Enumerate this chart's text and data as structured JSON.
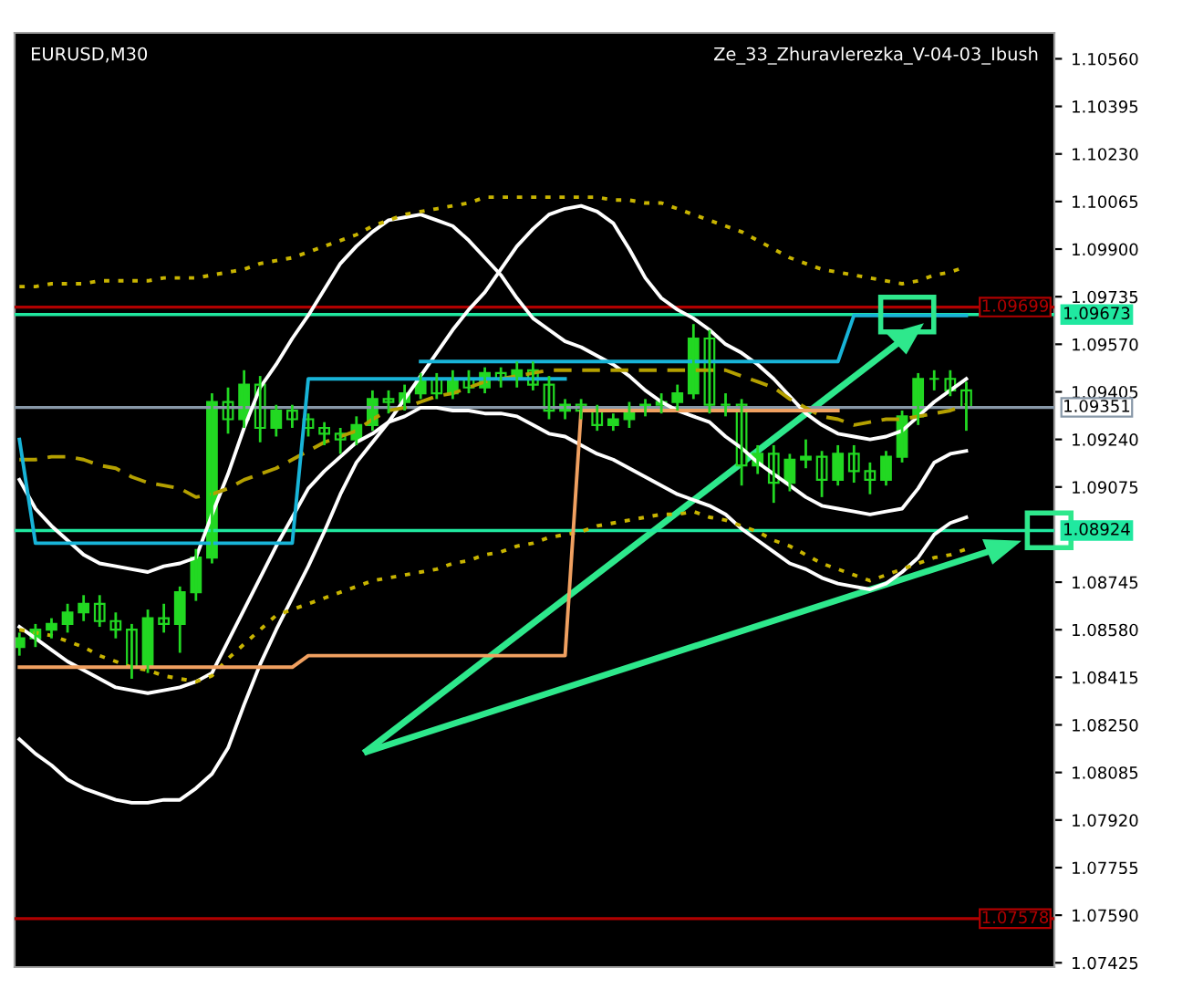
{
  "chart_data": {
    "type": "candlestick",
    "title": "EURUSD,M30",
    "subtitle": "Ze_33_Zhuravlerezka_V-04-03_Ibush",
    "categories": [
      null,
      null,
      null,
      null,
      null,
      null,
      null,
      null,
      null,
      null,
      null,
      null,
      null,
      null,
      null,
      null,
      null,
      null,
      null,
      null,
      null,
      null,
      null,
      null,
      null,
      null,
      null,
      null,
      null,
      null,
      null,
      null,
      null,
      null,
      null,
      null,
      null,
      null,
      null,
      null,
      null,
      null,
      null,
      null,
      null,
      null,
      null,
      null,
      null,
      null,
      null,
      null,
      null,
      null,
      null,
      null,
      null,
      null,
      null,
      null
    ],
    "color": "#22d822",
    "ohlc": [
      [
        1.0852,
        1.0857,
        1.0849,
        1.0855
      ],
      [
        1.0855,
        1.086,
        1.0852,
        1.0858
      ],
      [
        1.0858,
        1.0862,
        1.0855,
        1.086
      ],
      [
        1.086,
        1.0867,
        1.0857,
        1.0864
      ],
      [
        1.0864,
        1.087,
        1.0861,
        1.0867
      ],
      [
        1.0867,
        1.087,
        1.0859,
        1.0861
      ],
      [
        1.0861,
        1.0864,
        1.0855,
        1.0858
      ],
      [
        1.0858,
        1.086,
        1.0841,
        1.0845
      ],
      [
        1.0845,
        1.0865,
        1.0843,
        1.0862
      ],
      [
        1.0862,
        1.0867,
        1.0857,
        1.086
      ],
      [
        1.086,
        1.0873,
        1.085,
        1.0871
      ],
      [
        1.0871,
        1.0886,
        1.0868,
        1.0883
      ],
      [
        1.0883,
        1.094,
        1.0881,
        1.0937
      ],
      [
        1.0937,
        1.0942,
        1.0926,
        1.0931
      ],
      [
        1.0931,
        1.0948,
        1.0928,
        1.0943
      ],
      [
        1.0943,
        1.0946,
        1.0923,
        1.0928
      ],
      [
        1.0928,
        1.0936,
        1.0925,
        1.0934
      ],
      [
        1.0934,
        1.0936,
        1.0928,
        1.0931
      ],
      [
        1.0931,
        1.0933,
        1.0925,
        1.0928
      ],
      [
        1.0928,
        1.093,
        1.0922,
        1.0926
      ],
      [
        1.0926,
        1.0928,
        1.0919,
        1.0924
      ],
      [
        1.0924,
        1.0932,
        1.0922,
        1.0929
      ],
      [
        1.0929,
        1.0941,
        1.0927,
        1.0938
      ],
      [
        1.0938,
        1.0941,
        1.0933,
        1.0937
      ],
      [
        1.0937,
        1.0943,
        1.0934,
        1.094
      ],
      [
        1.094,
        1.0947,
        1.0938,
        1.0945
      ],
      [
        1.0945,
        1.0947,
        1.0938,
        1.094
      ],
      [
        1.094,
        1.0948,
        1.0938,
        1.0945
      ],
      [
        1.0945,
        1.0948,
        1.094,
        1.0942
      ],
      [
        1.0942,
        1.0949,
        1.094,
        1.0947
      ],
      [
        1.0947,
        1.0949,
        1.0942,
        1.0945
      ],
      [
        1.0945,
        1.0951,
        1.0942,
        1.0948
      ],
      [
        1.0948,
        1.0951,
        1.0941,
        1.0943
      ],
      [
        1.0943,
        1.0946,
        1.0931,
        1.0934
      ],
      [
        1.0934,
        1.0938,
        1.0931,
        1.0936
      ],
      [
        1.0936,
        1.0938,
        1.0931,
        1.0934
      ],
      [
        1.0934,
        1.0936,
        1.0927,
        1.0929
      ],
      [
        1.0929,
        1.0933,
        1.0927,
        1.0931
      ],
      [
        1.0931,
        1.0937,
        1.0928,
        1.0934
      ],
      [
        1.0934,
        1.0938,
        1.0932,
        1.0936
      ],
      [
        1.0936,
        1.094,
        1.0933,
        1.0937
      ],
      [
        1.0937,
        1.0943,
        1.0934,
        1.094
      ],
      [
        1.094,
        1.0964,
        1.0938,
        1.0959
      ],
      [
        1.0959,
        1.0962,
        1.0933,
        1.0936
      ],
      [
        1.0936,
        1.094,
        1.0932,
        1.0936
      ],
      [
        1.0936,
        1.0938,
        1.0908,
        1.0915
      ],
      [
        1.0915,
        1.0922,
        1.0912,
        1.0919
      ],
      [
        1.0919,
        1.0922,
        1.0902,
        1.0909
      ],
      [
        1.0909,
        1.0919,
        1.0906,
        1.0917
      ],
      [
        1.0917,
        1.0924,
        1.0914,
        1.0918
      ],
      [
        1.0918,
        1.092,
        1.0904,
        1.091
      ],
      [
        1.091,
        1.0922,
        1.0908,
        1.0919
      ],
      [
        1.0919,
        1.0922,
        1.0909,
        1.0913
      ],
      [
        1.0913,
        1.0916,
        1.0905,
        1.091
      ],
      [
        1.091,
        1.092,
        1.0908,
        1.0918
      ],
      [
        1.0918,
        1.0934,
        1.0916,
        1.0932
      ],
      [
        1.0932,
        1.0947,
        1.0929,
        1.0945
      ],
      [
        1.0945,
        1.0948,
        1.0941,
        1.0945
      ],
      [
        1.0945,
        1.0948,
        1.0939,
        1.0941
      ],
      [
        1.0941,
        1.0944,
        1.0927,
        1.0935
      ]
    ],
    "series": [
      {
        "type": "line",
        "color": "#ffffff",
        "line_style": "solid",
        "values": [
          1.082,
          1.0815,
          1.0811,
          1.0806,
          1.0803,
          1.0801,
          1.0799,
          1.0798,
          1.0798,
          1.0799,
          1.0799,
          1.0803,
          1.0808,
          1.0817,
          1.0832,
          1.0846,
          1.0858,
          1.0869,
          1.088,
          1.0892,
          1.0905,
          1.0916,
          1.0923,
          1.093,
          1.0938,
          1.0946,
          1.0954,
          1.0962,
          1.0969,
          1.0975,
          1.0983,
          1.0991,
          1.0997,
          1.1002,
          1.1004,
          1.1005,
          1.1003,
          1.0999,
          1.099,
          1.098,
          1.0973,
          1.0969,
          1.0966,
          1.0962,
          1.0957,
          1.0954,
          1.095,
          1.0945,
          1.0939,
          1.0933,
          1.0929,
          1.0926,
          1.0925,
          1.0924,
          1.0925,
          1.0927,
          1.0932,
          1.0937,
          1.0941,
          1.0945
        ]
      },
      {
        "type": "line",
        "color": "#ffffff",
        "line_style": "solid",
        "values": [
          1.091,
          1.09,
          1.0894,
          1.0889,
          1.0884,
          1.0881,
          1.088,
          1.0879,
          1.0878,
          1.088,
          1.0881,
          1.0883,
          1.0898,
          1.0912,
          1.0928,
          1.0942,
          1.095,
          1.0959,
          1.0967,
          1.0976,
          1.0985,
          1.0991,
          1.0996,
          1.1,
          1.1001,
          1.1002,
          1.1,
          1.0998,
          1.0993,
          1.0987,
          1.0981,
          1.0973,
          1.0966,
          1.0962,
          1.0958,
          1.0956,
          1.0953,
          1.095,
          1.0946,
          1.0941,
          1.0937,
          1.0934,
          1.0932,
          1.093,
          1.0925,
          1.0921,
          1.0916,
          1.0912,
          1.0908,
          1.0904,
          1.0901,
          1.09,
          1.0899,
          1.0898,
          1.0899,
          1.09,
          1.0907,
          1.0916,
          1.0919,
          1.092
        ]
      },
      {
        "type": "line",
        "color": "#ffffff",
        "line_style": "solid",
        "values": [
          1.0859,
          1.0855,
          1.0851,
          1.0847,
          1.0844,
          1.0841,
          1.0838,
          1.0837,
          1.0836,
          1.0837,
          1.0838,
          1.084,
          1.0843,
          1.0854,
          1.0865,
          1.0876,
          1.0887,
          1.0897,
          1.0907,
          1.0913,
          1.0918,
          1.0923,
          1.0926,
          1.093,
          1.0932,
          1.0935,
          1.0935,
          1.0934,
          1.0934,
          1.0933,
          1.0933,
          1.0932,
          1.0929,
          1.0926,
          1.0925,
          1.0922,
          1.0919,
          1.0917,
          1.0914,
          1.0911,
          1.0908,
          1.0905,
          1.0903,
          1.0901,
          1.0898,
          1.0893,
          1.0889,
          1.0885,
          1.0881,
          1.0879,
          1.0876,
          1.0874,
          1.0873,
          1.0872,
          1.0874,
          1.0878,
          1.0883,
          1.0891,
          1.0895,
          1.0897
        ]
      },
      {
        "type": "line",
        "color": "#c8b400",
        "line_style": "dotted",
        "values": [
          1.0977,
          1.0977,
          1.0978,
          1.0978,
          1.0978,
          1.0979,
          1.0979,
          1.0979,
          1.0979,
          1.098,
          1.098,
          1.098,
          1.0981,
          1.0982,
          1.0983,
          1.0985,
          1.0986,
          1.0987,
          1.0989,
          1.0991,
          1.0993,
          1.0995,
          1.0998,
          1.1,
          1.1002,
          1.1003,
          1.1004,
          1.1005,
          1.1006,
          1.1008,
          1.1008,
          1.1008,
          1.1008,
          1.1008,
          1.1008,
          1.1008,
          1.1008,
          1.1007,
          1.1007,
          1.1006,
          1.1006,
          1.1004,
          1.1002,
          1.1,
          1.0998,
          1.0996,
          1.0993,
          1.099,
          1.0987,
          1.0985,
          1.0983,
          1.0982,
          1.0981,
          1.098,
          1.0979,
          1.0978,
          1.0979,
          1.0981,
          1.0982,
          1.0984
        ]
      },
      {
        "type": "line",
        "color": "#b4a000",
        "line_style": "dashed",
        "values": [
          1.0917,
          1.0917,
          1.0918,
          1.0918,
          1.0917,
          1.0915,
          1.0914,
          1.0911,
          1.0909,
          1.0908,
          1.0907,
          1.0904,
          1.0905,
          1.0907,
          1.091,
          1.0912,
          1.0914,
          1.0917,
          1.092,
          1.0923,
          1.0925,
          1.0927,
          1.0931,
          1.0934,
          1.0935,
          1.0937,
          1.0939,
          1.094,
          1.0942,
          1.0944,
          1.0945,
          1.0946,
          1.0947,
          1.0948,
          1.0948,
          1.0948,
          1.0948,
          1.0948,
          1.0948,
          1.0948,
          1.0948,
          1.0948,
          1.0948,
          1.0948,
          1.0948,
          1.0946,
          1.0944,
          1.0942,
          1.0938,
          1.0935,
          1.0932,
          1.0931,
          1.0929,
          1.093,
          1.0931,
          1.0931,
          1.0932,
          1.0933,
          1.0934,
          1.0936
        ]
      },
      {
        "type": "line",
        "color": "#c8b400",
        "line_style": "dotted",
        "values": [
          1.0858,
          1.0857,
          1.0856,
          1.0854,
          1.0852,
          1.0849,
          1.0847,
          1.0845,
          1.0844,
          1.0842,
          1.0841,
          1.084,
          1.0842,
          1.0848,
          1.0853,
          1.0858,
          1.0863,
          1.0865,
          1.0867,
          1.0869,
          1.0871,
          1.0873,
          1.0875,
          1.0876,
          1.0877,
          1.0878,
          1.0879,
          1.0881,
          1.0882,
          1.0884,
          1.0885,
          1.0887,
          1.0888,
          1.089,
          1.0891,
          1.0892,
          1.0894,
          1.0895,
          1.0896,
          1.0897,
          1.0898,
          1.0898,
          1.0899,
          1.0897,
          1.0896,
          1.0894,
          1.0892,
          1.0889,
          1.0887,
          1.0884,
          1.0881,
          1.0879,
          1.0877,
          1.0875,
          1.0877,
          1.0879,
          1.0881,
          1.0883,
          1.0884,
          1.0886
        ]
      },
      {
        "type": "line",
        "color": "#f0a060",
        "line_style": "solid",
        "values": [
          1.0845,
          1.0845,
          1.0845,
          1.0845,
          1.0845,
          1.0845,
          1.0845,
          1.0845,
          1.0845,
          1.0845,
          1.0845,
          1.0845,
          1.0845,
          1.0845,
          1.0845,
          1.0845,
          1.0845,
          1.0845,
          1.0849,
          1.0849,
          1.0849,
          1.0849,
          1.0849,
          1.0849,
          1.0849,
          1.0849,
          1.0849,
          1.0849,
          1.0849,
          1.0849,
          1.0849,
          1.0849,
          1.0849,
          1.0849,
          1.0849,
          1.0934,
          1.0934,
          1.0934,
          1.0934,
          1.0934,
          1.0934,
          1.0934,
          1.0934,
          1.0934,
          1.0934,
          1.0934,
          1.0934,
          1.0934,
          1.0934,
          1.0934,
          1.0934,
          1.0934,
          null,
          null,
          null,
          null,
          null,
          null,
          null,
          null
        ]
      },
      {
        "type": "line",
        "color": "#18b4d8",
        "line_style": "solid",
        "values": [
          1.0924,
          1.0888,
          1.0888,
          1.0888,
          1.0888,
          1.0888,
          1.0888,
          1.0888,
          1.0888,
          1.0888,
          1.0888,
          1.0888,
          1.0888,
          1.0888,
          1.0888,
          1.0888,
          1.0888,
          1.0888,
          1.0945,
          1.0945,
          1.0945,
          1.0945,
          1.0945,
          1.0945,
          1.0945,
          1.0945,
          1.0945,
          1.0945,
          1.0945,
          1.0945,
          1.0945,
          1.0945,
          1.0945,
          1.0945,
          1.0945,
          null,
          null,
          null,
          null,
          null,
          null,
          null,
          null,
          null,
          null,
          null,
          null,
          null,
          null,
          null,
          null,
          null,
          null,
          null,
          null,
          null,
          null,
          null,
          null,
          null
        ]
      },
      {
        "type": "line",
        "color": "#18b4d8",
        "line_style": "solid",
        "values": [
          null,
          null,
          null,
          null,
          null,
          null,
          null,
          null,
          null,
          null,
          null,
          null,
          null,
          null,
          null,
          null,
          null,
          null,
          null,
          null,
          null,
          null,
          null,
          null,
          null,
          1.0951,
          1.0951,
          1.0951,
          1.0951,
          1.0951,
          1.0951,
          1.0951,
          1.0951,
          1.0951,
          1.0951,
          1.0951,
          1.0951,
          1.0951,
          1.0951,
          1.0951,
          1.0951,
          1.0951,
          1.0951,
          1.0951,
          1.0951,
          1.0951,
          1.0951,
          1.0951,
          1.0951,
          1.0951,
          1.0951,
          1.0951,
          1.0967,
          1.0967,
          1.0967,
          1.0967,
          1.0967,
          1.0967,
          1.0967,
          1.0967
        ]
      }
    ],
    "ref_lines": [
      {
        "axis": "y",
        "value": 1.09673,
        "label": "1.09673",
        "color": "#20e8a0"
      },
      {
        "axis": "y",
        "value": 1.09351,
        "label": "1.09351",
        "color": "#8898a8"
      },
      {
        "axis": "y",
        "value": 1.08924,
        "label": "1.08924",
        "color": "#20e8a0"
      },
      {
        "axis": "y",
        "value": 1.09699,
        "label": "1.09699",
        "color": "#b00000"
      },
      {
        "axis": "y",
        "value": 1.07578,
        "label": "1.07578",
        "color": "#b00000"
      }
    ],
    "ylim": [
      1.0741,
      1.1065
    ],
    "yticks": [
      {
        "value": 1.1056,
        "label": "1.10560"
      },
      1.10395,
      {
        "value": 1.1023,
        "label": "1.10230"
      },
      1.10065,
      {
        "value": 1.099,
        "label": "1.09900"
      },
      1.09735,
      {
        "value": 1.0957,
        "label": "1.09570"
      },
      1.09405,
      {
        "value": 1.0924,
        "label": "1.09240"
      },
      1.09075,
      1.08745,
      {
        "value": 1.0858,
        "label": "1.08580"
      },
      1.08415,
      {
        "value": 1.0825,
        "label": "1.08250"
      },
      1.08085,
      {
        "value": 1.0792,
        "label": "1.07920"
      },
      1.07755,
      {
        "value": 1.0759,
        "label": "1.07590"
      },
      1.07425
    ],
    "tick_labels": "y"
  }
}
